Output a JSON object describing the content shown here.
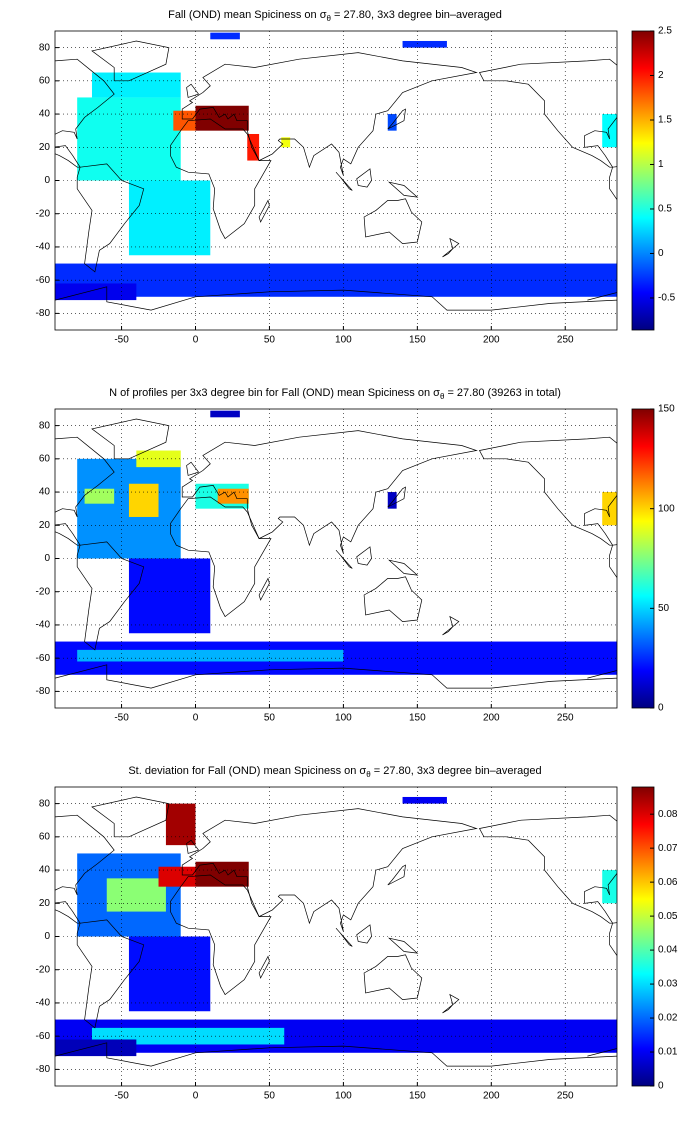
{
  "chart_data": [
    {
      "type": "heatmap",
      "title": {
        "before": "Fall (OND) mean Spiciness on σ",
        "sub": "θ",
        "after": " = 27.80, 3x3 degree bin–averaged"
      },
      "xlim": [
        -95,
        285
      ],
      "ylim": [
        -90,
        90
      ],
      "xticks": [
        -50,
        0,
        50,
        100,
        150,
        200,
        250
      ],
      "yticks": [
        -80,
        -60,
        -40,
        -20,
        0,
        20,
        40,
        60,
        80
      ],
      "clim": [
        -0.86,
        2.5
      ],
      "cticks": [
        -0.5,
        0,
        0.5,
        1,
        1.5,
        2,
        2.5
      ],
      "patches": [
        {
          "lon": [
            -80,
            -10
          ],
          "lat": [
            0,
            50
          ],
          "value": 0.45
        },
        {
          "lon": [
            -70,
            -10
          ],
          "lat": [
            50,
            65
          ],
          "value": 0.35
        },
        {
          "lon": [
            -45,
            10
          ],
          "lat": [
            -45,
            0
          ],
          "value": 0.35
        },
        {
          "lon": [
            -15,
            0
          ],
          "lat": [
            30,
            42
          ],
          "value": 1.8
        },
        {
          "lon": [
            0,
            36
          ],
          "lat": [
            30,
            45
          ],
          "value": 2.5
        },
        {
          "lon": [
            35,
            43
          ],
          "lat": [
            12,
            28
          ],
          "value": 2.0
        },
        {
          "lon": [
            58,
            64
          ],
          "lat": [
            20,
            26
          ],
          "value": 1.2
        },
        {
          "lon": [
            -95,
            285
          ],
          "lat": [
            -70,
            -50
          ],
          "value": -0.3
        },
        {
          "lon": [
            -95,
            -40
          ],
          "lat": [
            -72,
            -62
          ],
          "value": -0.5
        },
        {
          "lon": [
            10,
            30
          ],
          "lat": [
            85,
            89
          ],
          "value": -0.3
        },
        {
          "lon": [
            140,
            170
          ],
          "lat": [
            80,
            84
          ],
          "value": -0.3
        },
        {
          "lon": [
            130,
            136
          ],
          "lat": [
            30,
            40
          ],
          "value": -0.2
        },
        {
          "lon": [
            275,
            285
          ],
          "lat": [
            20,
            40
          ],
          "value": 0.4
        }
      ]
    },
    {
      "type": "heatmap",
      "title": {
        "before": "N of profiles per 3x3 degree bin for Fall (OND) mean Spiciness on σ",
        "sub": "θ",
        "after": " = 27.80 (39263 in total)"
      },
      "xlim": [
        -95,
        285
      ],
      "ylim": [
        -90,
        90
      ],
      "xticks": [
        -50,
        0,
        50,
        100,
        150,
        200,
        250
      ],
      "yticks": [
        -80,
        -60,
        -40,
        -20,
        0,
        20,
        40,
        60,
        80
      ],
      "clim": [
        0,
        150
      ],
      "cticks": [
        0,
        50,
        100,
        150
      ],
      "patches": [
        {
          "lon": [
            -80,
            -10
          ],
          "lat": [
            0,
            60
          ],
          "value": 40
        },
        {
          "lon": [
            -45,
            -25
          ],
          "lat": [
            25,
            45
          ],
          "value": 100
        },
        {
          "lon": [
            -40,
            -10
          ],
          "lat": [
            55,
            65
          ],
          "value": 90
        },
        {
          "lon": [
            -75,
            -55
          ],
          "lat": [
            33,
            42
          ],
          "value": 80
        },
        {
          "lon": [
            -45,
            10
          ],
          "lat": [
            -45,
            0
          ],
          "value": 20
        },
        {
          "lon": [
            0,
            36
          ],
          "lat": [
            30,
            45
          ],
          "value": 60
        },
        {
          "lon": [
            15,
            36
          ],
          "lat": [
            33,
            42
          ],
          "value": 110
        },
        {
          "lon": [
            -95,
            285
          ],
          "lat": [
            -70,
            -50
          ],
          "value": 20
        },
        {
          "lon": [
            -80,
            100
          ],
          "lat": [
            -62,
            -55
          ],
          "value": 45
        },
        {
          "lon": [
            10,
            30
          ],
          "lat": [
            85,
            89
          ],
          "value": 10
        },
        {
          "lon": [
            130,
            136
          ],
          "lat": [
            30,
            40
          ],
          "value": 10
        },
        {
          "lon": [
            275,
            285
          ],
          "lat": [
            20,
            40
          ],
          "value": 100
        }
      ]
    },
    {
      "type": "heatmap",
      "title": {
        "before": "St. deviation for Fall (OND) mean Spiciness on σ",
        "sub": "θ",
        "after": " = 27.80, 3x3 degree bin–averaged"
      },
      "xlim": [
        -95,
        285
      ],
      "ylim": [
        -90,
        90
      ],
      "xticks": [
        -50,
        0,
        50,
        100,
        150,
        200,
        250
      ],
      "yticks": [
        -80,
        -60,
        -40,
        -20,
        0,
        20,
        40,
        60,
        80
      ],
      "clim": [
        0,
        0.088
      ],
      "cticks": [
        0,
        0.01,
        0.02,
        0.03,
        0.04,
        0.05,
        0.06,
        0.07,
        0.08
      ],
      "patches": [
        {
          "lon": [
            -80,
            -10
          ],
          "lat": [
            0,
            50
          ],
          "value": 0.02
        },
        {
          "lon": [
            -60,
            -20
          ],
          "lat": [
            15,
            35
          ],
          "value": 0.045
        },
        {
          "lon": [
            -45,
            10
          ],
          "lat": [
            -45,
            0
          ],
          "value": 0.012
        },
        {
          "lon": [
            -25,
            0
          ],
          "lat": [
            30,
            42
          ],
          "value": 0.08
        },
        {
          "lon": [
            0,
            36
          ],
          "lat": [
            30,
            45
          ],
          "value": 0.088
        },
        {
          "lon": [
            -20,
            0
          ],
          "lat": [
            55,
            80
          ],
          "value": 0.085
        },
        {
          "lon": [
            -95,
            285
          ],
          "lat": [
            -70,
            -50
          ],
          "value": 0.01
        },
        {
          "lon": [
            -70,
            60
          ],
          "lat": [
            -65,
            -55
          ],
          "value": 0.03
        },
        {
          "lon": [
            -95,
            -40
          ],
          "lat": [
            -72,
            -62
          ],
          "value": 0.005
        },
        {
          "lon": [
            140,
            170
          ],
          "lat": [
            80,
            84
          ],
          "value": 0.01
        },
        {
          "lon": [
            275,
            285
          ],
          "lat": [
            20,
            40
          ],
          "value": 0.035
        }
      ]
    }
  ]
}
